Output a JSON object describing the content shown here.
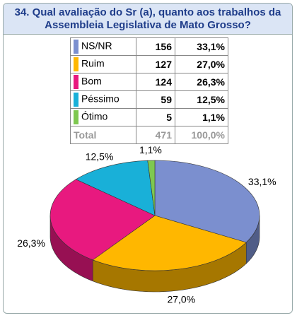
{
  "chart_data": {
    "type": "pie",
    "title": "34. Qual avaliação do Sr (a), quanto aos trabalhos da Assembleia Legislativa de Mato Grosso?",
    "categories": [
      "NS/NR",
      "Ruim",
      "Bom",
      "Péssimo",
      "Ótimo"
    ],
    "counts": [
      156,
      127,
      124,
      59,
      5
    ],
    "values": [
      33.1,
      27.0,
      26.3,
      12.5,
      1.1
    ],
    "value_labels": [
      "33,1%",
      "27,0%",
      "26,3%",
      "12,5%",
      "1,1%"
    ],
    "colors": [
      "#7b8fcf",
      "#ffb700",
      "#e8197f",
      "#19b0d8",
      "#7ec850"
    ],
    "total_label": "Total",
    "total_count": 471,
    "total_percent": {
      "value": 100,
      "label": "100,0%"
    }
  }
}
